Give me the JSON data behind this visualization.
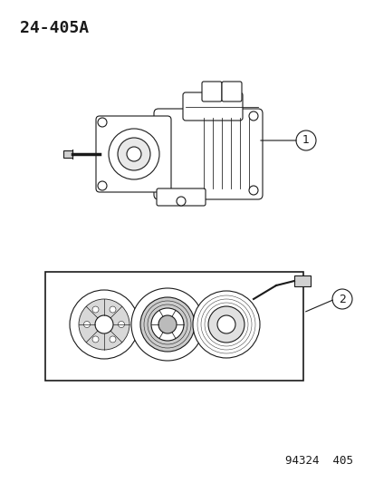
{
  "title": "24-405A",
  "footer": "94324  405",
  "bg_color": "#ffffff",
  "line_color": "#1a1a1a",
  "callout1_label": "1",
  "callout2_label": "2",
  "title_fontsize": 13,
  "footer_fontsize": 9
}
